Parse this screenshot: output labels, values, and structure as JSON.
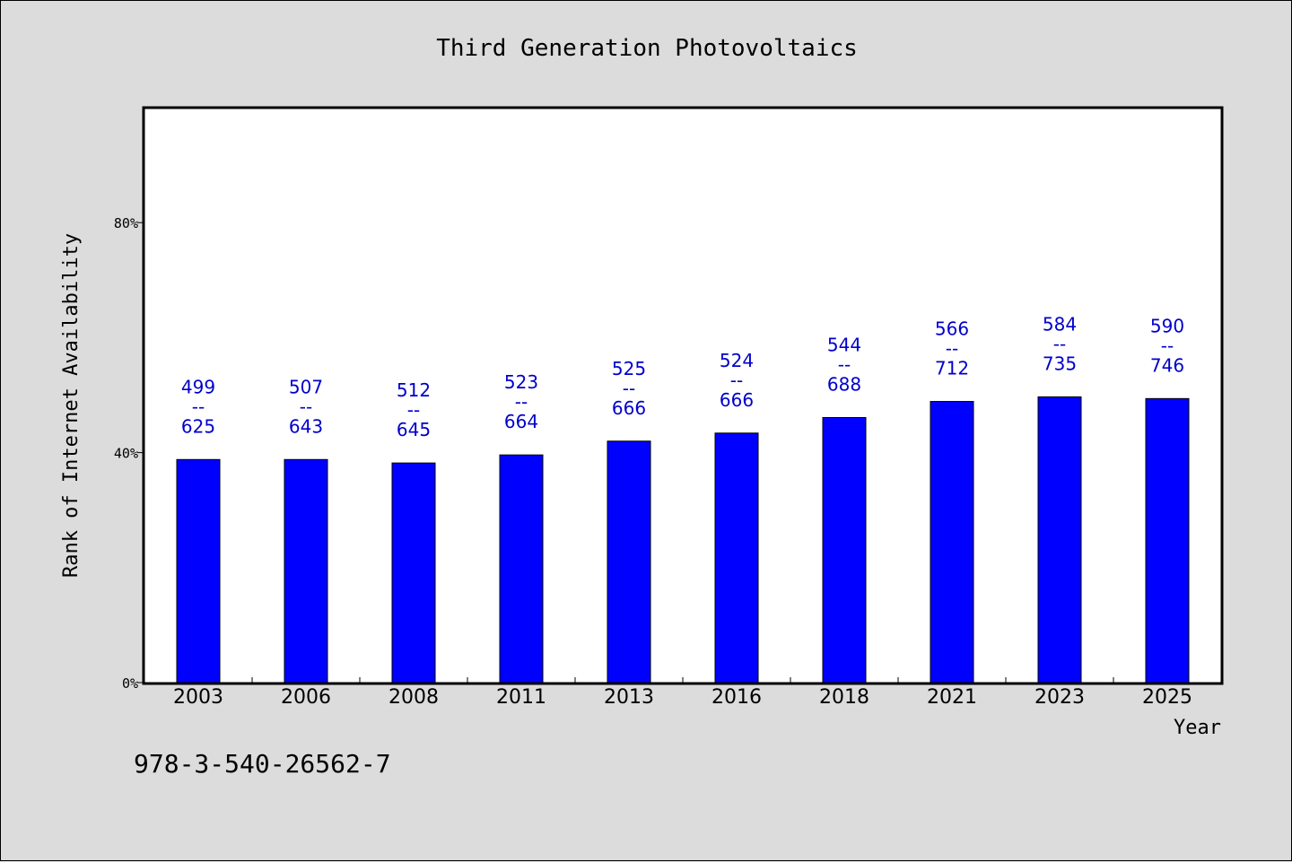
{
  "chart_data": {
    "type": "bar",
    "title": "Third Generation Photovoltaics",
    "xlabel": "Year",
    "ylabel": "Rank of Internet Availability",
    "categories": [
      "2003",
      "2006",
      "2008",
      "2011",
      "2013",
      "2016",
      "2018",
      "2021",
      "2023",
      "2025"
    ],
    "values": [
      38.8,
      38.8,
      38.2,
      39.6,
      42.0,
      43.4,
      46.1,
      48.9,
      49.7,
      49.4
    ],
    "label_low": [
      "499",
      "507",
      "512",
      "523",
      "525",
      "524",
      "544",
      "566",
      "584",
      "590"
    ],
    "label_high": [
      "625",
      "643",
      "645",
      "664",
      "666",
      "666",
      "688",
      "712",
      "735",
      "746"
    ],
    "label_separator": "--",
    "ylim": [
      0,
      100
    ],
    "yticks": [
      0,
      40,
      80
    ],
    "ytick_labels": [
      "0%",
      "40%",
      "80%"
    ],
    "grid": false,
    "bar_color": "#0000ff",
    "label_color": "#0000cc",
    "background_color": "#dcdcdc",
    "plot_background": "#ffffff"
  },
  "footer": {
    "isbn": "978-3-540-26562-7"
  }
}
